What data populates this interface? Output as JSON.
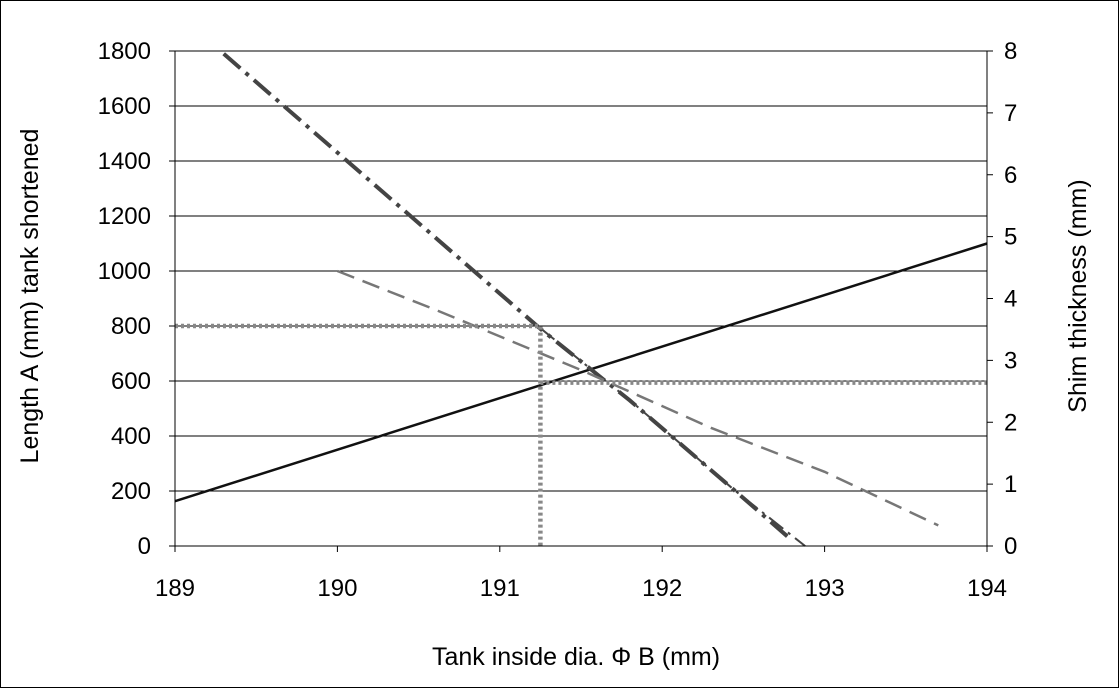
{
  "chart_data": {
    "type": "line",
    "title": "",
    "xlabel": "Tank inside dia.  Φ B (mm)",
    "ylabel": "Length A (mm) tank shortened",
    "y2label": "Shim thickness (mm)",
    "xlim": [
      189,
      194
    ],
    "ylim": [
      0,
      1800
    ],
    "y2lim": [
      0,
      8
    ],
    "x_ticks": [
      "189",
      "190",
      "191",
      "192",
      "193",
      "194"
    ],
    "y_ticks": [
      "0",
      "200",
      "400",
      "600",
      "800",
      "1000",
      "1200",
      "1400",
      "1600",
      "1800"
    ],
    "y2_ticks": [
      "0",
      "1",
      "2",
      "3",
      "4",
      "5",
      "6",
      "7",
      "8"
    ],
    "grid": "horizontal",
    "legend": "none",
    "series": [
      {
        "axis": "left",
        "style": "solid",
        "color": "#111111",
        "x": [
          189,
          194
        ],
        "y": [
          163,
          1100
        ]
      },
      {
        "axis": "left",
        "style": "dash-dot-thick",
        "color": "#444444",
        "x": [
          189.3,
          191.25,
          191.65,
          191.8,
          192.45,
          192.8
        ],
        "y": [
          1790,
          790,
          600,
          530,
          200,
          20
        ]
      },
      {
        "axis": "right",
        "style": "dash-dot-thin",
        "color": "#444444",
        "x": [
          191.25,
          191.65,
          191.8,
          192.45,
          192.88
        ],
        "y": [
          3.52,
          2.67,
          2.36,
          0.89,
          0
        ]
      },
      {
        "axis": "left",
        "style": "dashed",
        "color": "#777777",
        "x": [
          190,
          190.6,
          191.5,
          192.3,
          193,
          193.7
        ],
        "y": [
          1000,
          860,
          640,
          430,
          270,
          75
        ]
      },
      {
        "axis": "left",
        "style": "dotted",
        "color": "#888888",
        "x": [
          189,
          191.25,
          191.25,
          191.25
        ],
        "y": [
          800,
          800,
          600,
          0
        ]
      },
      {
        "axis": "right",
        "style": "dotted",
        "color": "#888888",
        "x": [
          191.25,
          194
        ],
        "y": [
          2.64,
          2.64
        ]
      }
    ]
  }
}
